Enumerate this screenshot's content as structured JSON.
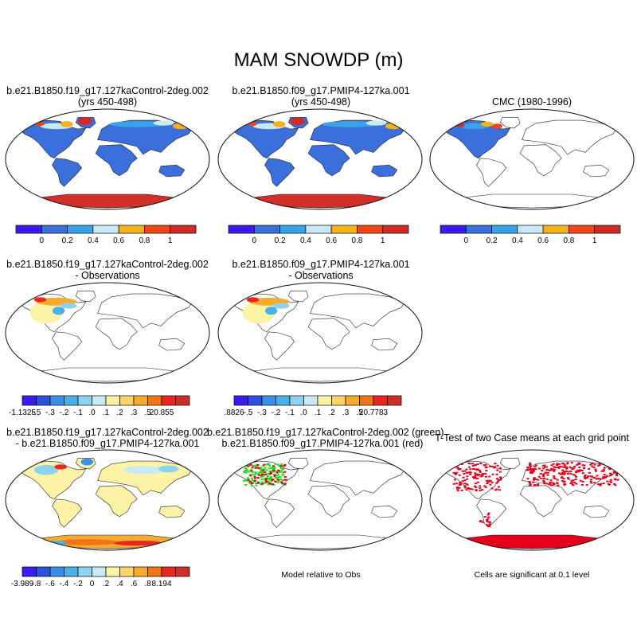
{
  "title": "MAM SNOWDP (m)",
  "palettes": {
    "abs": [
      "#3b1cf0",
      "#3a6fde",
      "#3aa2ea",
      "#c9e9f5",
      "#f5b21a",
      "#f54512",
      "#d12a26"
    ],
    "diff": [
      "#3b1cf0",
      "#2c52dd",
      "#3a8fe6",
      "#4ab0ea",
      "#8fd2ef",
      "#c9e9f5",
      "#fcf3a4",
      "#fdd468",
      "#f7ab2e",
      "#f27419",
      "#e8281e",
      "#cd2e29"
    ],
    "land": "#3b6fdb",
    "antarctic": "#d32f2a",
    "diff_land": "#fcf3a4",
    "sig": "#e8001a",
    "tt_green": "#1fdc1f",
    "tt_red": "#e8001a"
  },
  "panels": [
    {
      "id": "p1",
      "title_lines": [
        "b.e21.B1850.f19_g17.127kaControl-2deg.002",
        "(yrs 450-498)"
      ],
      "kind": "abs",
      "antarctica": true
    },
    {
      "id": "p2",
      "title_lines": [
        "b.e21.B1850.f09_g17.PMIP4-127ka.001",
        "(yrs 450-498)"
      ],
      "kind": "abs",
      "antarctica": true
    },
    {
      "id": "p3",
      "title_lines": [
        "CMC (1980-1996)"
      ],
      "kind": "obs",
      "antarctica": false
    },
    {
      "id": "p4",
      "title_lines": [
        "b.e21.B1850.f19_g17.127kaControl-2deg.002",
        "- Observations"
      ],
      "kind": "bias",
      "antarctica": false
    },
    {
      "id": "p5",
      "title_lines": [
        "b.e21.B1850.f09_g17.PMIP4-127ka.001",
        "- Observations"
      ],
      "kind": "bias",
      "antarctica": false
    },
    {
      "id": "p7",
      "title_lines": [
        "b.e21.B1850.f19_g17.127kaControl-2deg.002",
        "- b.e21.B1850.f09_g17.PMIP4-127ka.001"
      ],
      "kind": "diff",
      "antarctica": true
    },
    {
      "id": "p8",
      "title_lines": [
        "b.e21.B1850.f19_g17.127kaControl-2deg.002 (green)",
        "b.e21.B1850.f09_g17.PMIP4-127ka.001 (red)"
      ],
      "kind": "ttest",
      "antarctica": false
    },
    {
      "id": "p9",
      "title_lines": [
        "T-Test of two Case means at each grid point"
      ],
      "kind": "sig",
      "antarctica": true
    }
  ],
  "colorbars": [
    {
      "id": "cb1",
      "labels": [
        "0",
        "0.2",
        "0.4",
        "0.6",
        "0.8",
        "1"
      ]
    },
    {
      "id": "cb2",
      "labels": [
        "0",
        "0.2",
        "0.4",
        "0.6",
        "0.8",
        "1"
      ]
    },
    {
      "id": "cb3",
      "labels": [
        "0",
        "0.2",
        "0.4",
        "0.6",
        "0.8",
        "1"
      ]
    },
    {
      "id": "cb4",
      "labels": [
        "-1.1325",
        "-.5",
        "-.3",
        "-.2",
        "-.1",
        ".0",
        ".1",
        ".2",
        ".3",
        ".5",
        "20.855"
      ]
    },
    {
      "id": "cb5",
      "labels": [
        ".8826",
        "-.5",
        "-.3",
        "-.2",
        "-.1",
        ".0",
        ".1",
        ".2",
        ".3",
        ".5",
        "20.7783"
      ]
    },
    {
      "id": "cb7",
      "labels": [
        "-3.989",
        "-.8",
        "-.6",
        "-.4",
        "-.2",
        "0",
        ".2",
        ".4",
        ".6",
        ".8",
        "8.194"
      ]
    }
  ],
  "notes": {
    "model_rel_obs": "Model relative to Obs",
    "significance": "Cells are significant at 0.1 level"
  },
  "chart_data": [
    {
      "type": "heatmap",
      "title": "b.e21.B1850.f19_g17.127kaControl-2deg.002 (yrs 450-498)",
      "colorbar_levels": [
        0,
        0.2,
        0.4,
        0.6,
        0.8,
        1
      ],
      "units": "m"
    },
    {
      "type": "heatmap",
      "title": "b.e21.B1850.f09_g17.PMIP4-127ka.001 (yrs 450-498)",
      "colorbar_levels": [
        0,
        0.2,
        0.4,
        0.6,
        0.8,
        1
      ],
      "units": "m"
    },
    {
      "type": "heatmap",
      "title": "CMC (1980-1996)",
      "colorbar_levels": [
        0,
        0.2,
        0.4,
        0.6,
        0.8,
        1
      ],
      "units": "m"
    },
    {
      "type": "heatmap",
      "title": "b.e21.B1850.f19_g17.127kaControl-2deg.002 - Observations",
      "colorbar_levels": [
        -1.1325,
        -0.5,
        -0.3,
        -0.2,
        -0.1,
        0.0,
        0.1,
        0.2,
        0.3,
        0.5,
        20.855
      ]
    },
    {
      "type": "heatmap",
      "title": "b.e21.B1850.f09_g17.PMIP4-127ka.001 - Observations",
      "colorbar_levels": [
        0.8826,
        -0.5,
        -0.3,
        -0.2,
        -0.1,
        0.0,
        0.1,
        0.2,
        0.3,
        0.5,
        20.7783
      ]
    },
    {
      "type": "heatmap",
      "title": "b.e21.B1850.f19_g17.127kaControl-2deg.002 - b.e21.B1850.f09_g17.PMIP4-127ka.001",
      "colorbar_levels": [
        -3.989,
        -0.8,
        -0.6,
        -0.4,
        -0.2,
        0,
        0.2,
        0.4,
        0.6,
        0.8,
        8.194
      ]
    },
    {
      "type": "heatmap",
      "title": "b.e21.B1850.f19_g17.127kaControl-2deg.002 (green) b.e21.B1850.f09_g17.PMIP4-127ka.001 (red)"
    },
    {
      "type": "heatmap",
      "title": "T-Test of two Case means at each grid point"
    }
  ]
}
